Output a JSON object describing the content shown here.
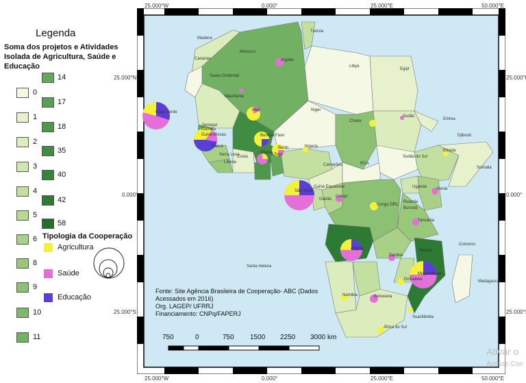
{
  "legend": {
    "title": "Legenda",
    "subtitle": "Soma dos projetos  e Atividades Isolada de Agricultura, Saúde e Educação",
    "classes_col1": [
      "0",
      "1",
      "2",
      "3",
      "4",
      "5",
      "6",
      "8",
      "9",
      "10",
      "11"
    ],
    "classes_col2": [
      "14",
      "17",
      "18",
      "35",
      "40",
      "42",
      "58"
    ],
    "colors_col1": [
      "#f4f8e4",
      "#e7f2cc",
      "#dcedbd",
      "#d1e7af",
      "#c4e0a0",
      "#b6d892",
      "#a8d086",
      "#99c87a",
      "#8cc072",
      "#80b869",
      "#72b063"
    ],
    "colors_col2": [
      "#63a85a",
      "#58a053",
      "#4e984c",
      "#3f8c42",
      "#358439",
      "#2c7a33",
      "#236f2b"
    ],
    "tipologia_title": "Tipologia da Cooperação",
    "tipologia": [
      {
        "label": "Agricultura",
        "color": "#f4f13a"
      },
      {
        "label": "Saúde",
        "color": "#e46fd8"
      },
      {
        "label": "Educação",
        "color": "#5b3fd4"
      }
    ]
  },
  "map": {
    "ocean_color": "#cfe9f4",
    "coords_top": [
      "25.000°W",
      "0.000°",
      "25.000°E",
      "50.000°E"
    ],
    "coords_bottom": [
      "25.000°W",
      "0.000°",
      "25.000°E",
      "50.000°E"
    ],
    "coords_left": [
      "25.000°N",
      "0.000°",
      "25.000°S"
    ],
    "coords_right": [
      "25.000°N",
      "0.000°",
      "25.000°S"
    ],
    "countries": [
      "Madeira",
      "Canarias",
      "Morocco",
      "Tunisia",
      "Argelia",
      "Libya",
      "Egipt",
      "Saara Ocidental",
      "Mauritania",
      "Mali",
      "Niger",
      "Chade",
      "Sudão",
      "Eritrea",
      "Djibouti",
      "Cabo Verde",
      "Senegal",
      "Gambia",
      "Guiné-Bissau",
      "Guiné",
      "Serra Leoa",
      "Liberia",
      "Costa",
      "Burkina Faso",
      "Ghana",
      "Benin",
      "Togo",
      "Nigeria",
      "Camarões",
      "RCA",
      "Sudão do Sul",
      "Etiopia",
      "Somalia",
      "Uganda",
      "Kenia",
      "São Tomé",
      "Guiné Equatorial",
      "Gabão",
      "Congo",
      "Congo DRC",
      "Ruanda",
      "Burundi",
      "Tanzania",
      "Angola",
      "Zambia",
      "Malawi",
      "Moçambique",
      "Comoros",
      "Santa Helena",
      "Namibia",
      "Botswana",
      "Zimbabwe",
      "Madagascar",
      "Suazilândia",
      "África do Sul"
    ],
    "scale_labels": [
      "750",
      "0",
      "750",
      "1500",
      "2250",
      "3000 km"
    ],
    "source": [
      "Fonte: Site Agência Brasileira de Cooperação- ABC (Dados",
      "Acessados em 2016)",
      "Org. LAGEP/ UFRRJ",
      "Financiamento: CNPq/FAPERJ"
    ]
  },
  "watermark": {
    "line1": "Ativar o",
    "line2": "Acesse Con"
  }
}
